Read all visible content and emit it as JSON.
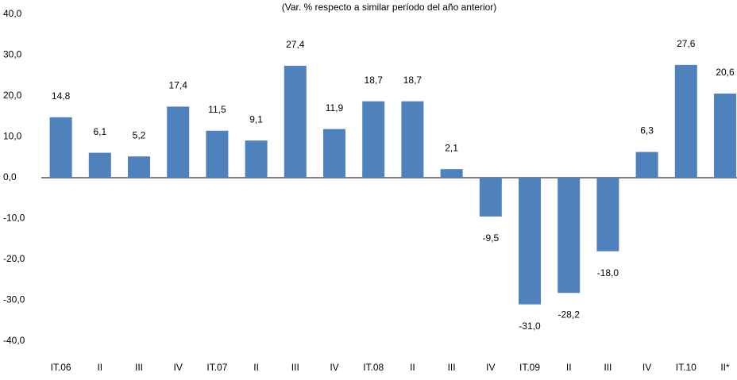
{
  "chart_data": {
    "type": "bar",
    "subtitle": "(Var. % respecto a similar período del año anterior)",
    "categories": [
      "IT.06",
      "II",
      "III",
      "IV",
      "IT.07",
      "II",
      "III",
      "IV",
      "IT.08",
      "II",
      "III",
      "IV",
      "IT.09",
      "II",
      "III",
      "IV",
      "IT.10",
      "II*"
    ],
    "values": [
      14.8,
      6.1,
      5.2,
      17.4,
      11.5,
      9.1,
      27.4,
      11.9,
      18.7,
      18.7,
      2.1,
      -9.5,
      -31.0,
      -28.2,
      -18.0,
      6.3,
      27.6,
      20.6
    ],
    "value_labels": [
      "14,8",
      "6,1",
      "5,2",
      "17,4",
      "11,5",
      "9,1",
      "27,4",
      "11,9",
      "18,7",
      "18,7",
      "2,1",
      "-9,5",
      "-31,0",
      "-28,2",
      "-18,0",
      "6,3",
      "27,6",
      "20,6"
    ],
    "color": "#4f81bd",
    "ylim": [
      -40,
      40
    ],
    "yticks": [
      {
        "value": -40,
        "label": "-40,0"
      },
      {
        "value": -30,
        "label": "-30,0"
      },
      {
        "value": -20,
        "label": "-20,0"
      },
      {
        "value": -10,
        "label": "-10,0"
      },
      {
        "value": 0,
        "label": "0,0"
      },
      {
        "value": 10,
        "label": "10,0"
      },
      {
        "value": 20,
        "label": "20,0"
      },
      {
        "value": 30,
        "label": "30,0"
      },
      {
        "value": 40,
        "label": "40,0"
      }
    ],
    "grid": false
  }
}
